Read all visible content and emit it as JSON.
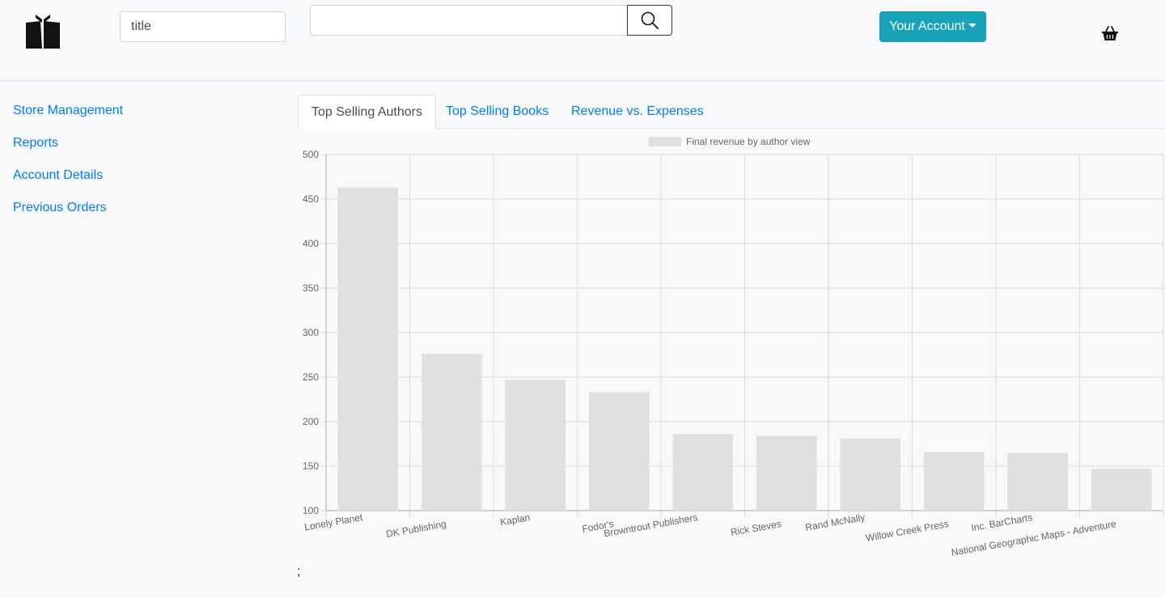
{
  "header": {
    "select_value": "title",
    "search_placeholder": "",
    "account_label": "Your Account",
    "logo_icon": "open-book-icon",
    "search_icon": "search-icon",
    "cart_icon": "basket-icon",
    "account_color": "#17a2b8"
  },
  "sidebar": {
    "items": [
      {
        "label": "Store Management"
      },
      {
        "label": "Reports"
      },
      {
        "label": "Account Details"
      },
      {
        "label": "Previous Orders"
      }
    ]
  },
  "tabs": [
    {
      "label": "Top Selling Authors",
      "active": true
    },
    {
      "label": "Top Selling Books",
      "active": false
    },
    {
      "label": "Revenue vs. Expenses",
      "active": false
    }
  ],
  "chart_data": {
    "type": "bar",
    "legend": "Final  revenue by author  view",
    "legend_position": "top",
    "categories": [
      "Lonely Planet",
      "DK Publishing",
      "Kaplan",
      "Fodor's",
      "Browntrout Publishers",
      "Rick Steves",
      "Rand McNally",
      "Willow Creek Press",
      "Inc. BarCharts",
      "National Geographic Maps - Adventure"
    ],
    "values": [
      463,
      276,
      247,
      233,
      186,
      184,
      181,
      166,
      165,
      147
    ],
    "ylim": [
      100,
      500
    ],
    "yticks": [
      100,
      150,
      200,
      250,
      300,
      350,
      400,
      450,
      500
    ],
    "grid": true,
    "bar_color": "#e0e0e0"
  },
  "footer_text": ";"
}
